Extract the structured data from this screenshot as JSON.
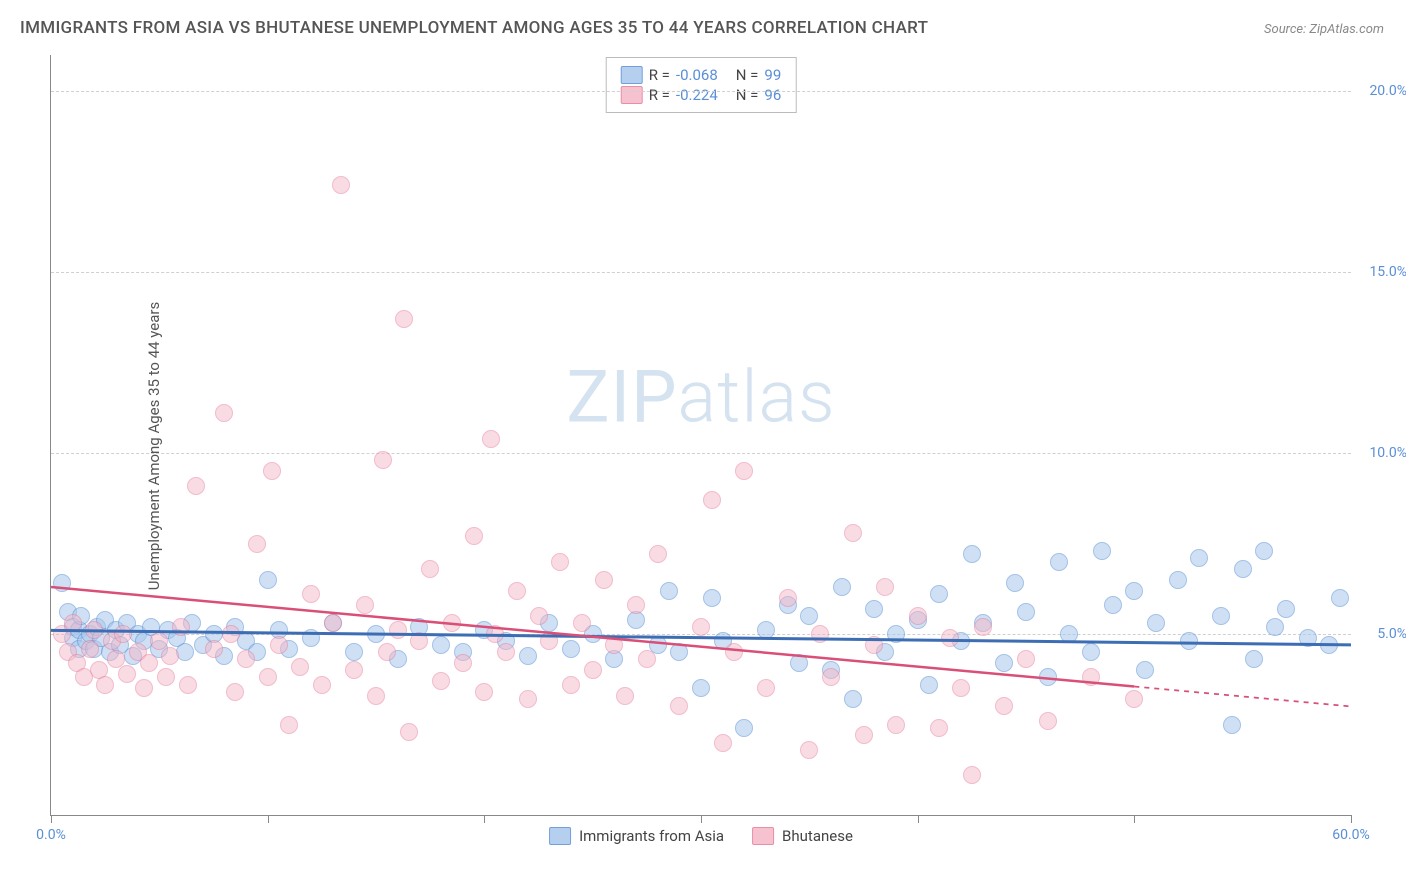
{
  "title": "IMMIGRANTS FROM ASIA VS BHUTANESE UNEMPLOYMENT AMONG AGES 35 TO 44 YEARS CORRELATION CHART",
  "source": "Source: ZipAtlas.com",
  "watermark": "ZIPatlas",
  "y_axis_label": "Unemployment Among Ages 35 to 44 years",
  "chart": {
    "type": "scatter",
    "xlim": [
      0,
      60
    ],
    "ylim": [
      0,
      21
    ],
    "x_ticks": [
      0,
      10,
      20,
      30,
      40,
      50,
      60
    ],
    "x_tick_labels": {
      "0": "0.0%",
      "60": "60.0%"
    },
    "y_ticks": [
      5,
      10,
      15,
      20
    ],
    "y_tick_labels": {
      "5": "5.0%",
      "10": "10.0%",
      "15": "15.0%",
      "20": "20.0%"
    },
    "background_color": "#ffffff",
    "grid_color": "#d0d0d0",
    "axis_color": "#888888",
    "point_radius": 9
  },
  "series": [
    {
      "name": "Immigrants from Asia",
      "fill_color": "#a8c8ec",
      "fill_opacity": 0.55,
      "stroke_color": "#5a8fd6",
      "R": "-0.068",
      "N": "99",
      "trend": {
        "x1": 0,
        "y1": 5.1,
        "x2": 60,
        "y2": 4.7,
        "color": "#3d6db3",
        "width": 3,
        "dash_extent": 60
      },
      "points": [
        [
          0.5,
          6.4
        ],
        [
          0.8,
          5.6
        ],
        [
          1.0,
          5.2
        ],
        [
          1.0,
          4.9
        ],
        [
          1.3,
          4.6
        ],
        [
          1.3,
          5.1
        ],
        [
          1.4,
          5.5
        ],
        [
          1.6,
          4.8
        ],
        [
          1.8,
          5.0
        ],
        [
          2.0,
          4.6
        ],
        [
          2.1,
          5.2
        ],
        [
          2.3,
          4.9
        ],
        [
          2.5,
          5.4
        ],
        [
          2.7,
          4.5
        ],
        [
          3.0,
          5.1
        ],
        [
          3.2,
          4.7
        ],
        [
          3.5,
          5.3
        ],
        [
          3.8,
          4.4
        ],
        [
          4.0,
          5.0
        ],
        [
          4.3,
          4.8
        ],
        [
          4.6,
          5.2
        ],
        [
          5.0,
          4.6
        ],
        [
          5.4,
          5.1
        ],
        [
          5.8,
          4.9
        ],
        [
          6.2,
          4.5
        ],
        [
          6.5,
          5.3
        ],
        [
          7.0,
          4.7
        ],
        [
          7.5,
          5.0
        ],
        [
          8.0,
          4.4
        ],
        [
          8.5,
          5.2
        ],
        [
          9.0,
          4.8
        ],
        [
          9.5,
          4.5
        ],
        [
          10.0,
          6.5
        ],
        [
          10.5,
          5.1
        ],
        [
          11.0,
          4.6
        ],
        [
          12.0,
          4.9
        ],
        [
          13.0,
          5.3
        ],
        [
          14.0,
          4.5
        ],
        [
          15.0,
          5.0
        ],
        [
          16.0,
          4.3
        ],
        [
          17.0,
          5.2
        ],
        [
          18.0,
          4.7
        ],
        [
          19.0,
          4.5
        ],
        [
          20.0,
          5.1
        ],
        [
          21.0,
          4.8
        ],
        [
          22.0,
          4.4
        ],
        [
          23.0,
          5.3
        ],
        [
          24.0,
          4.6
        ],
        [
          25.0,
          5.0
        ],
        [
          26.0,
          4.3
        ],
        [
          27.0,
          5.4
        ],
        [
          28.0,
          4.7
        ],
        [
          28.5,
          6.2
        ],
        [
          29.0,
          4.5
        ],
        [
          30.0,
          3.5
        ],
        [
          30.5,
          6.0
        ],
        [
          31.0,
          4.8
        ],
        [
          32.0,
          2.4
        ],
        [
          33.0,
          5.1
        ],
        [
          34.0,
          5.8
        ],
        [
          34.5,
          4.2
        ],
        [
          35.0,
          5.5
        ],
        [
          36.0,
          4.0
        ],
        [
          36.5,
          6.3
        ],
        [
          37.0,
          3.2
        ],
        [
          38.0,
          5.7
        ],
        [
          38.5,
          4.5
        ],
        [
          39.0,
          5.0
        ],
        [
          40.0,
          5.4
        ],
        [
          40.5,
          3.6
        ],
        [
          41.0,
          6.1
        ],
        [
          42.0,
          4.8
        ],
        [
          42.5,
          7.2
        ],
        [
          43.0,
          5.3
        ],
        [
          44.0,
          4.2
        ],
        [
          44.5,
          6.4
        ],
        [
          45.0,
          5.6
        ],
        [
          46.0,
          3.8
        ],
        [
          46.5,
          7.0
        ],
        [
          47.0,
          5.0
        ],
        [
          48.0,
          4.5
        ],
        [
          48.5,
          7.3
        ],
        [
          49.0,
          5.8
        ],
        [
          50.0,
          6.2
        ],
        [
          50.5,
          4.0
        ],
        [
          51.0,
          5.3
        ],
        [
          52.0,
          6.5
        ],
        [
          52.5,
          4.8
        ],
        [
          53.0,
          7.1
        ],
        [
          54.0,
          5.5
        ],
        [
          54.5,
          2.5
        ],
        [
          55.0,
          6.8
        ],
        [
          55.5,
          4.3
        ],
        [
          56.0,
          7.3
        ],
        [
          57.0,
          5.7
        ],
        [
          58.0,
          4.9
        ],
        [
          59.0,
          4.7
        ],
        [
          59.5,
          6.0
        ],
        [
          56.5,
          5.2
        ]
      ]
    },
    {
      "name": "Bhutanese",
      "fill_color": "#f5b8c8",
      "fill_opacity": 0.5,
      "stroke_color": "#e67a9a",
      "R": "-0.224",
      "N": "96",
      "trend": {
        "x1": 0,
        "y1": 6.3,
        "x2": 60,
        "y2": 3.0,
        "color": "#d94f77",
        "width": 2.5,
        "dash_extent": 50
      },
      "points": [
        [
          0.5,
          5.0
        ],
        [
          0.8,
          4.5
        ],
        [
          1.0,
          5.3
        ],
        [
          1.2,
          4.2
        ],
        [
          1.5,
          3.8
        ],
        [
          1.8,
          4.6
        ],
        [
          2.0,
          5.1
        ],
        [
          2.2,
          4.0
        ],
        [
          2.5,
          3.6
        ],
        [
          2.8,
          4.8
        ],
        [
          3.0,
          4.3
        ],
        [
          3.3,
          5.0
        ],
        [
          3.5,
          3.9
        ],
        [
          4.0,
          4.5
        ],
        [
          4.3,
          3.5
        ],
        [
          4.5,
          4.2
        ],
        [
          5.0,
          4.8
        ],
        [
          5.3,
          3.8
        ],
        [
          5.5,
          4.4
        ],
        [
          6.0,
          5.2
        ],
        [
          6.3,
          3.6
        ],
        [
          6.7,
          9.1
        ],
        [
          7.5,
          4.6
        ],
        [
          8.0,
          11.1
        ],
        [
          8.3,
          5.0
        ],
        [
          8.5,
          3.4
        ],
        [
          9.0,
          4.3
        ],
        [
          9.5,
          7.5
        ],
        [
          10.0,
          3.8
        ],
        [
          10.2,
          9.5
        ],
        [
          10.5,
          4.7
        ],
        [
          11.0,
          2.5
        ],
        [
          11.5,
          4.1
        ],
        [
          12.0,
          6.1
        ],
        [
          12.5,
          3.6
        ],
        [
          13.0,
          5.3
        ],
        [
          13.4,
          17.4
        ],
        [
          14.0,
          4.0
        ],
        [
          14.5,
          5.8
        ],
        [
          15.0,
          3.3
        ],
        [
          15.3,
          9.8
        ],
        [
          15.5,
          4.5
        ],
        [
          16.0,
          5.1
        ],
        [
          16.3,
          13.7
        ],
        [
          16.5,
          2.3
        ],
        [
          17.0,
          4.8
        ],
        [
          17.5,
          6.8
        ],
        [
          18.0,
          3.7
        ],
        [
          18.5,
          5.3
        ],
        [
          19.0,
          4.2
        ],
        [
          19.5,
          7.7
        ],
        [
          20.0,
          3.4
        ],
        [
          20.3,
          10.4
        ],
        [
          20.5,
          5.0
        ],
        [
          21.0,
          4.5
        ],
        [
          21.5,
          6.2
        ],
        [
          22.0,
          3.2
        ],
        [
          22.5,
          5.5
        ],
        [
          23.0,
          4.8
        ],
        [
          23.5,
          7.0
        ],
        [
          24.0,
          3.6
        ],
        [
          24.5,
          5.3
        ],
        [
          25.0,
          4.0
        ],
        [
          25.5,
          6.5
        ],
        [
          26.0,
          4.7
        ],
        [
          26.5,
          3.3
        ],
        [
          27.0,
          5.8
        ],
        [
          27.5,
          4.3
        ],
        [
          28.0,
          7.2
        ],
        [
          29.0,
          3.0
        ],
        [
          30.0,
          5.2
        ],
        [
          30.5,
          8.7
        ],
        [
          31.0,
          2.0
        ],
        [
          31.5,
          4.5
        ],
        [
          32.0,
          9.5
        ],
        [
          33.0,
          3.5
        ],
        [
          34.0,
          6.0
        ],
        [
          35.0,
          1.8
        ],
        [
          35.5,
          5.0
        ],
        [
          36.0,
          3.8
        ],
        [
          37.0,
          7.8
        ],
        [
          37.5,
          2.2
        ],
        [
          38.0,
          4.7
        ],
        [
          38.5,
          6.3
        ],
        [
          39.0,
          2.5
        ],
        [
          40.0,
          5.5
        ],
        [
          41.0,
          2.4
        ],
        [
          41.5,
          4.9
        ],
        [
          42.0,
          3.5
        ],
        [
          42.5,
          1.1
        ],
        [
          43.0,
          5.2
        ],
        [
          44.0,
          3.0
        ],
        [
          45.0,
          4.3
        ],
        [
          46.0,
          2.6
        ],
        [
          48.0,
          3.8
        ],
        [
          50.0,
          3.2
        ]
      ]
    }
  ],
  "legend_bottom": [
    {
      "label": "Immigrants from Asia",
      "fill": "#a8c8ec",
      "stroke": "#5a8fd6"
    },
    {
      "label": "Bhutanese",
      "fill": "#f5b8c8",
      "stroke": "#e67a9a"
    }
  ]
}
